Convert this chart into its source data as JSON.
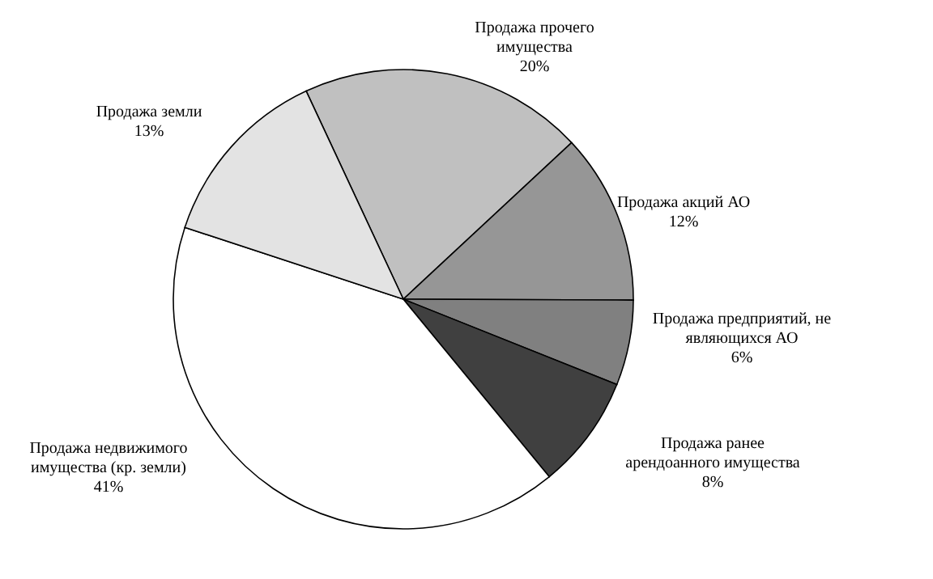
{
  "chart_data": {
    "type": "pie",
    "categories": [
      "Продажа прочего имущества",
      "Продажа акций АО",
      "Продажа предприятий, не являющихся АО",
      "Продажа ранее арендоанного имущества",
      "Продажа недвижимого имущества (кр. земли)",
      "Продажа земли"
    ],
    "values": [
      20,
      12,
      6,
      8,
      41,
      13
    ],
    "value_labels": [
      "20%",
      "12%",
      "6%",
      "8%",
      "41%",
      "13%"
    ],
    "colors": [
      "#c0c0c0",
      "#969696",
      "#808080",
      "#404040",
      "#ffffff",
      "#e3e3e3"
    ]
  }
}
